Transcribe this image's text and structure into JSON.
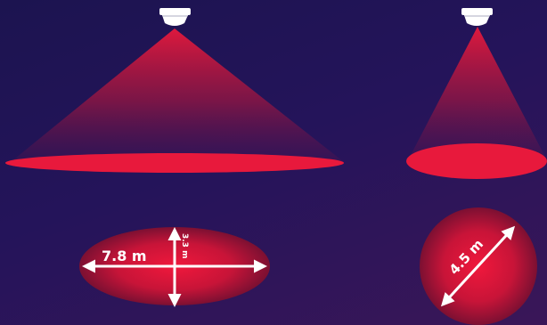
{
  "colors": {
    "background_top": "#1c1450",
    "background_bottom": "#3a1658",
    "beam": "#e8193c",
    "arrow": "#ffffff",
    "sensor": "#ffffff"
  },
  "icons": [
    "ceiling-sensor-icon",
    "ceiling-sensor-icon"
  ],
  "wide_detector": {
    "length_label": "7.8 m",
    "width_label": "3.3 m"
  },
  "narrow_detector": {
    "diameter_label": "4.5 m"
  }
}
